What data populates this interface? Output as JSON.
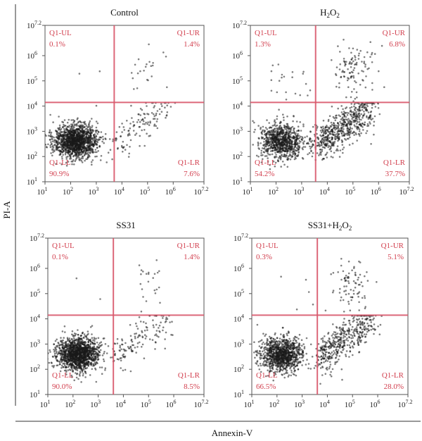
{
  "figure": {
    "ylabel": "PI-A",
    "xlabel": "Annexin-V"
  },
  "chart_data": [
    {
      "type": "scatter",
      "title": "Control",
      "title_sub": "",
      "xscale": "log",
      "yscale": "log",
      "xlim": [
        10,
        15848932
      ],
      "ylim": [
        10,
        15848932
      ],
      "x_ticks": [
        "10^1",
        "10^2",
        "10^3",
        "10^4",
        "10^5",
        "10^6",
        "10^7.2"
      ],
      "y_ticks": [
        "10^1",
        "10^2",
        "10^3",
        "10^4",
        "10^5",
        "10^6",
        "10^7.2"
      ],
      "gate": {
        "x": 5000,
        "y": 14000
      },
      "quadrants": {
        "UL": {
          "label": "Q1-UL",
          "percent": "0.1%"
        },
        "UR": {
          "label": "Q1-UR",
          "percent": "1.4%"
        },
        "LL": {
          "label": "Q1-LL",
          "percent": "90.9%"
        },
        "LR": {
          "label": "Q1-LR",
          "percent": "7.6%"
        }
      }
    },
    {
      "type": "scatter",
      "title": "H",
      "title_sub": "2",
      "title_mid": "O",
      "title_sub2": "2",
      "xscale": "log",
      "yscale": "log",
      "xlim": [
        10,
        15848932
      ],
      "ylim": [
        10,
        15848932
      ],
      "x_ticks": [
        "10^1",
        "10^2",
        "10^3",
        "10^4",
        "10^5",
        "10^6",
        "10^7.2"
      ],
      "y_ticks": [
        "10^1",
        "10^2",
        "10^3",
        "10^4",
        "10^5",
        "10^6",
        "10^7.2"
      ],
      "gate": {
        "x": 3500,
        "y": 14000
      },
      "quadrants": {
        "UL": {
          "label": "Q1-UL",
          "percent": "1.3%"
        },
        "UR": {
          "label": "Q1-UR",
          "percent": "6.8%"
        },
        "LL": {
          "label": "Q1-LL",
          "percent": "54.2%"
        },
        "LR": {
          "label": "Q1-LR",
          "percent": "37.7%"
        }
      }
    },
    {
      "type": "scatter",
      "title": "SS31",
      "title_sub": "",
      "xscale": "log",
      "yscale": "log",
      "xlim": [
        10,
        15848932
      ],
      "ylim": [
        10,
        15848932
      ],
      "x_ticks": [
        "10^1",
        "10^2",
        "10^3",
        "10^4",
        "10^5",
        "10^6",
        "10^7.2"
      ],
      "y_ticks": [
        "10^1",
        "10^2",
        "10^3",
        "10^4",
        "10^5",
        "10^6",
        "10^7.2"
      ],
      "gate": {
        "x": 4000,
        "y": 14000
      },
      "quadrants": {
        "UL": {
          "label": "Q1-UL",
          "percent": "0.1%"
        },
        "UR": {
          "label": "Q1-UR",
          "percent": "1.4%"
        },
        "LL": {
          "label": "Q1-LL",
          "percent": "90.0%"
        },
        "LR": {
          "label": "Q1-LR",
          "percent": "8.5%"
        }
      }
    },
    {
      "type": "scatter",
      "title": "SS31+H",
      "title_sub": "2",
      "title_mid": "O",
      "title_sub2": "2",
      "xscale": "log",
      "yscale": "log",
      "xlim": [
        10,
        15848932
      ],
      "ylim": [
        10,
        15848932
      ],
      "x_ticks": [
        "10^1",
        "10^2",
        "10^3",
        "10^4",
        "10^5",
        "10^6",
        "10^7.2"
      ],
      "y_ticks": [
        "10^1",
        "10^2",
        "10^3",
        "10^4",
        "10^5",
        "10^6",
        "10^7.2"
      ],
      "gate": {
        "x": 4000,
        "y": 14000
      },
      "quadrants": {
        "UL": {
          "label": "Q1-UL",
          "percent": "0.3%"
        },
        "UR": {
          "label": "Q1-UR",
          "percent": "5.1%"
        },
        "LL": {
          "label": "Q1-LL",
          "percent": "66.5%"
        },
        "LR": {
          "label": "Q1-LR",
          "percent": "28.0%"
        }
      }
    }
  ]
}
